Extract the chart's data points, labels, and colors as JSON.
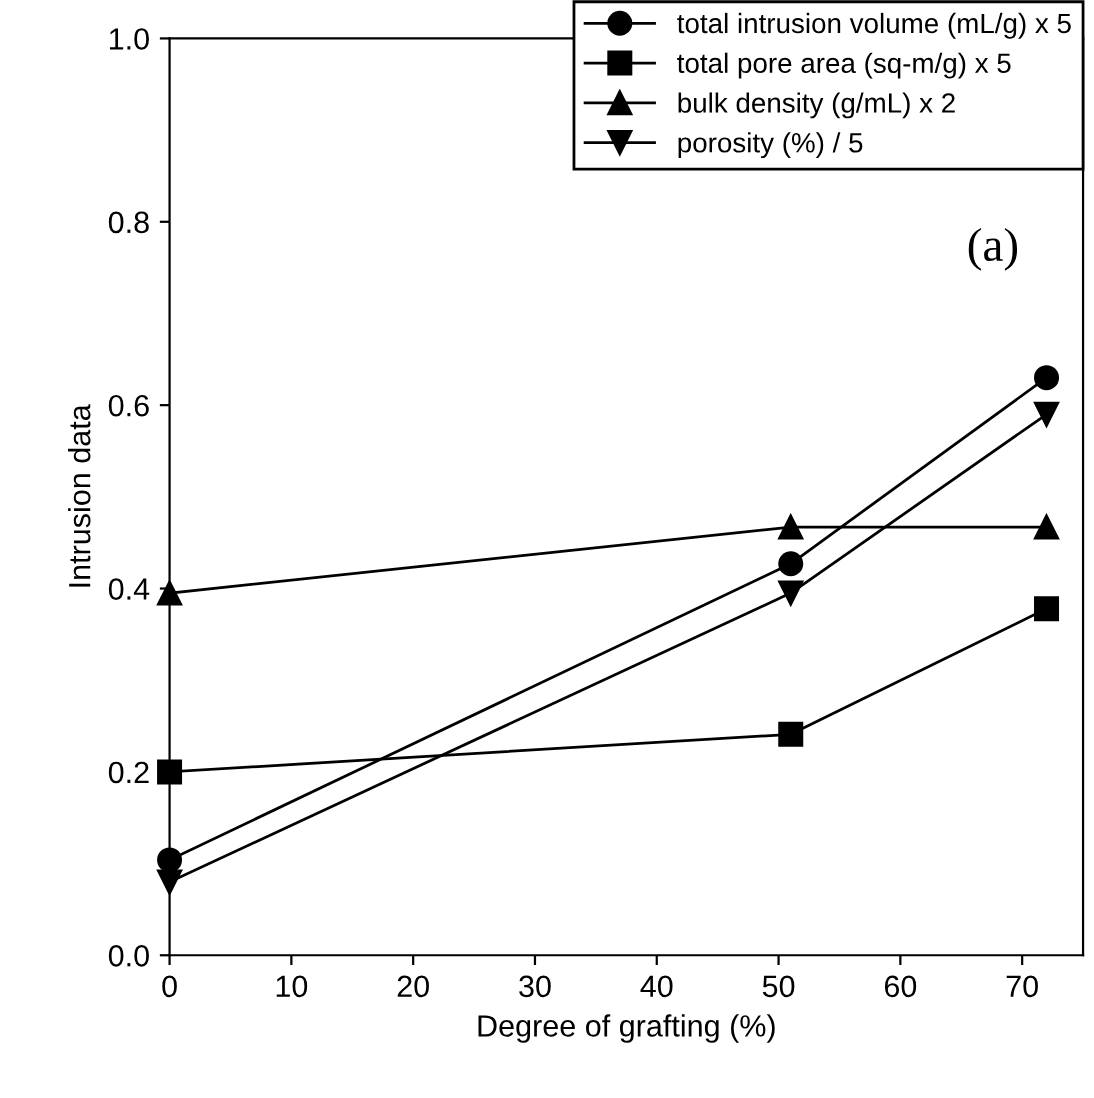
{
  "chart_data": {
    "type": "line",
    "xlabel": "Degree of grafting (%)",
    "ylabel": "Intrusion data",
    "x": [
      0,
      51,
      72
    ],
    "series": [
      {
        "name": "total intrusion volume (mL/g) x 5",
        "color": "#000000",
        "marker": "circle",
        "values": [
          0.104,
          0.427,
          0.63
        ]
      },
      {
        "name": "total pore area (sq-m/g) x 5",
        "color": "#000000",
        "marker": "square",
        "values": [
          0.2,
          0.241,
          0.378
        ]
      },
      {
        "name": "bulk density (g/mL) x 2",
        "color": "#000000",
        "marker": "triangle",
        "values": [
          0.395,
          0.467,
          0.467
        ]
      },
      {
        "name": "porosity (%) / 5",
        "color": "#000000",
        "marker": "triangle_down",
        "values": [
          0.08,
          0.395,
          0.59
        ]
      }
    ],
    "xlim": [
      0,
      75
    ],
    "xticks": [
      0,
      10,
      20,
      30,
      40,
      50,
      60,
      70
    ],
    "ylim": [
      0,
      1
    ],
    "yticks": [
      {
        "value": 0,
        "label": "0.0"
      },
      0.2,
      0.4,
      0.6,
      0.8,
      {
        "value": 1,
        "label": "1.0"
      }
    ],
    "annotations": [
      "(a)"
    ],
    "legend": "top right",
    "grid": false,
    "line_style": "solid"
  }
}
